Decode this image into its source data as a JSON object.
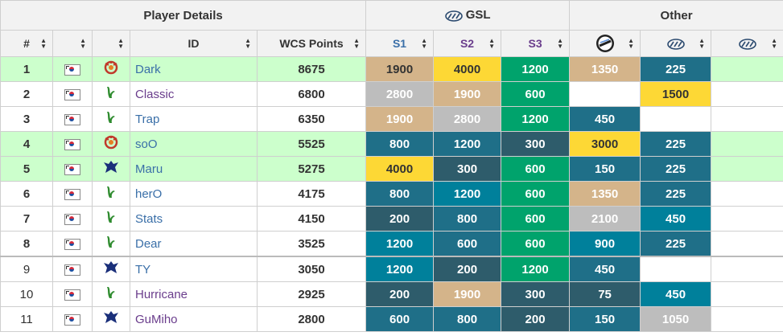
{
  "header": {
    "groups": {
      "player_details": "Player Details",
      "gsl": "GSL",
      "other": "Other"
    },
    "columns": {
      "rank": "#",
      "id": "ID",
      "points": "WCS Points",
      "s1": "S1",
      "s2": "S2",
      "s3": "S3"
    },
    "icons": {
      "gsl": "gsl-logo-icon",
      "other1": "circle-logo-icon",
      "other2": "gsl-logo-icon",
      "other3": "gsl-logo-icon"
    }
  },
  "colors": {
    "c_tan": "#d4b48a",
    "c_gold": "#fdd835",
    "c_silver": "#bdbdbd",
    "c_green": "#00a36c",
    "c_teal": "#1f6f88",
    "c_slate": "#2e5c6b",
    "c_cyan": "#00809b",
    "highlight_row": "#ccffcc"
  },
  "rows": [
    {
      "rank": "1",
      "race": "zerg",
      "id": "Dark",
      "points": "8675",
      "s1": "1900",
      "s2": "4000",
      "s3": "1200",
      "o1": "1350",
      "o2": "225",
      "o3": ""
    },
    {
      "rank": "2",
      "race": "protoss",
      "id": "Classic",
      "points": "6800",
      "s1": "2800",
      "s2": "1900",
      "s3": "600",
      "o1": "",
      "o2": "1500",
      "o3": ""
    },
    {
      "rank": "3",
      "race": "protoss",
      "id": "Trap",
      "points": "6350",
      "s1": "1900",
      "s2": "2800",
      "s3": "1200",
      "o1": "450",
      "o2": "",
      "o3": ""
    },
    {
      "rank": "4",
      "race": "zerg",
      "id": "soO",
      "points": "5525",
      "s1": "800",
      "s2": "1200",
      "s3": "300",
      "o1": "3000",
      "o2": "225",
      "o3": ""
    },
    {
      "rank": "5",
      "race": "terran",
      "id": "Maru",
      "points": "5275",
      "s1": "4000",
      "s2": "300",
      "s3": "600",
      "o1": "150",
      "o2": "225",
      "o3": ""
    },
    {
      "rank": "6",
      "race": "protoss",
      "id": "herO",
      "points": "4175",
      "s1": "800",
      "s2": "1200",
      "s3": "600",
      "o1": "1350",
      "o2": "225",
      "o3": ""
    },
    {
      "rank": "7",
      "race": "protoss",
      "id": "Stats",
      "points": "4150",
      "s1": "200",
      "s2": "800",
      "s3": "600",
      "o1": "2100",
      "o2": "450",
      "o3": ""
    },
    {
      "rank": "8",
      "race": "protoss",
      "id": "Dear",
      "points": "3525",
      "s1": "1200",
      "s2": "600",
      "s3": "600",
      "o1": "900",
      "o2": "225",
      "o3": ""
    },
    {
      "rank": "9",
      "race": "terran",
      "id": "TY",
      "points": "3050",
      "s1": "1200",
      "s2": "200",
      "s3": "1200",
      "o1": "450",
      "o2": "",
      "o3": ""
    },
    {
      "rank": "10",
      "race": "protoss",
      "id": "Hurricane",
      "points": "2925",
      "s1": "200",
      "s2": "1900",
      "s3": "300",
      "o1": "75",
      "o2": "450",
      "o3": ""
    },
    {
      "rank": "11",
      "race": "terran",
      "id": "GuMiho",
      "points": "2800",
      "s1": "600",
      "s2": "800",
      "s3": "200",
      "o1": "150",
      "o2": "1050",
      "o3": ""
    }
  ]
}
